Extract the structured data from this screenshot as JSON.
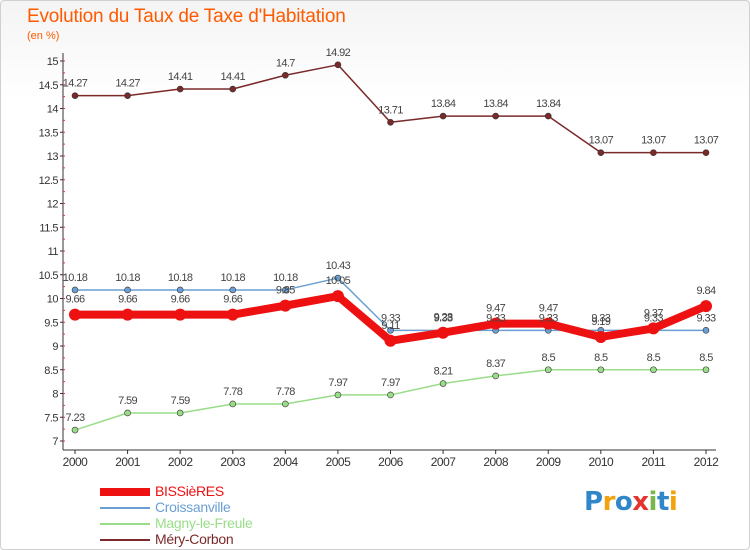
{
  "title": "Evolution du Taux de Taxe d'Habitation",
  "unit_label": "(en %)",
  "logo": {
    "letters": [
      "P",
      "r",
      "o",
      "x",
      "i",
      "t",
      "i"
    ],
    "colors": [
      "#2f86c8",
      "#f2a20c",
      "#2f86c8",
      "#e3342f",
      "#7ab648",
      "#2f86c8",
      "#f2a20c"
    ]
  },
  "chart_data": {
    "type": "line",
    "x": [
      "2000",
      "2001",
      "2002",
      "2003",
      "2004",
      "2005",
      "2006",
      "2007",
      "2008",
      "2009",
      "2010",
      "2011",
      "2012"
    ],
    "ylim": [
      7,
      15
    ],
    "y_ticks": [
      "7",
      "7.5",
      "8",
      "8.5",
      "9",
      "9.5",
      "10",
      "10.5",
      "11",
      "11.5",
      "12",
      "12.5",
      "13",
      "13.5",
      "14",
      "14.5",
      "15"
    ],
    "grid": false,
    "legend_position": "bottom-left",
    "series": [
      {
        "name": "BISSièRES",
        "color": "#ee1111",
        "values": [
          9.66,
          9.66,
          9.66,
          9.66,
          9.85,
          10.05,
          9.11,
          9.28,
          9.47,
          9.47,
          9.19,
          9.37,
          9.84
        ],
        "labels": [
          "9.66",
          "9.66",
          "9.66",
          "9.66",
          "9.85",
          "10.05",
          "9.11",
          "9.28",
          "9.47",
          "9.47",
          "9.19",
          "9.37",
          "9.84"
        ]
      },
      {
        "name": "Croissanville",
        "color": "#6a9fd4",
        "values": [
          10.18,
          10.18,
          10.18,
          10.18,
          10.18,
          10.43,
          9.33,
          9.33,
          9.33,
          9.33,
          9.33,
          9.33,
          9.33
        ],
        "labels": [
          "10.18",
          "10.18",
          "10.18",
          "10.18",
          "10.18",
          "10.43",
          "9.33",
          "9.33",
          "9.33",
          "9.33",
          "9.33",
          "9.33",
          "9.33"
        ]
      },
      {
        "name": "Magny-le-Freule",
        "color": "#99dd88",
        "values": [
          7.23,
          7.59,
          7.59,
          7.78,
          7.78,
          7.97,
          7.97,
          8.21,
          8.37,
          8.5,
          8.5,
          8.5,
          8.5
        ],
        "labels": [
          "7.23",
          "7.59",
          "7.59",
          "7.78",
          "7.78",
          "7.97",
          "7.97",
          "8.21",
          "8.37",
          "8.5",
          "8.5",
          "8.5",
          "8.5"
        ]
      },
      {
        "name": "Méry-Corbon",
        "color": "#7a2a2a",
        "values": [
          14.27,
          14.27,
          14.41,
          14.41,
          14.7,
          14.92,
          13.71,
          13.84,
          13.84,
          13.84,
          13.07,
          13.07,
          13.07
        ],
        "labels": [
          "14.27",
          "14.27",
          "14.41",
          "14.41",
          "14.7",
          "14.92",
          "13.71",
          "13.84",
          "13.84",
          "13.84",
          "13.07",
          "13.07",
          "13.07"
        ]
      }
    ]
  }
}
